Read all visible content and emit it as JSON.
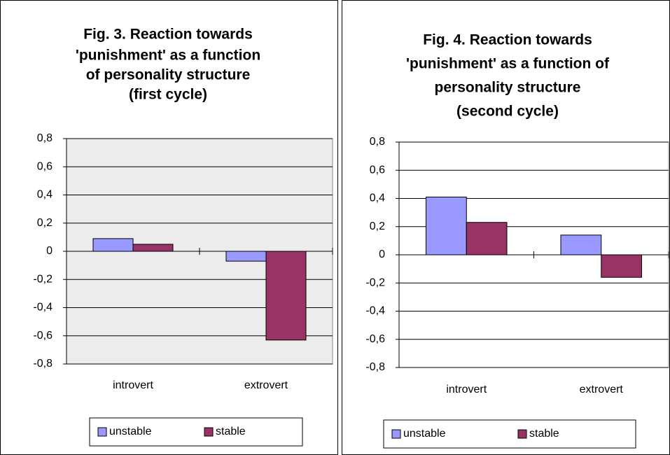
{
  "chart_data": [
    {
      "type": "bar",
      "title": [
        "Fig. 3. Reaction towards",
        "'punishment' as a function",
        "of personality structure",
        "(first cycle)"
      ],
      "categories": [
        "introvert",
        "extrovert"
      ],
      "series": [
        {
          "name": "unstable",
          "color": "#9999ff",
          "values": [
            0.09,
            -0.07
          ]
        },
        {
          "name": "stable",
          "color": "#993366",
          "values": [
            0.05,
            -0.63
          ]
        }
      ],
      "ylim": [
        -0.8,
        0.8
      ],
      "yticks": [
        {
          "value": -0.8,
          "label": "-0,8"
        },
        {
          "value": -0.6,
          "label": "-0,6"
        },
        {
          "value": -0.4,
          "label": "-0,4"
        },
        {
          "value": -0.2,
          "label": "-0,2"
        },
        0,
        {
          "value": 0.2,
          "label": "0,2"
        },
        {
          "value": 0.4,
          "label": "0,4"
        },
        {
          "value": 0.6,
          "label": "0,6"
        },
        {
          "value": 0.8,
          "label": "0,8"
        }
      ],
      "grid": true,
      "legend": "bottom"
    },
    {
      "type": "bar",
      "title": [
        "Fig. 4. Reaction towards",
        "'punishment' as a function of",
        "personality structure",
        "(second cycle)"
      ],
      "categories": [
        "introvert",
        "extrovert"
      ],
      "series": [
        {
          "name": "unstable",
          "color": "#9999ff",
          "values": [
            0.41,
            0.14
          ]
        },
        {
          "name": "stable",
          "color": "#993366",
          "values": [
            0.23,
            -0.16
          ]
        }
      ],
      "ylim": [
        -0.8,
        0.8
      ],
      "yticks": [
        {
          "value": -0.8,
          "label": "-0,8"
        },
        {
          "value": -0.6,
          "label": "-0,6"
        },
        {
          "value": -0.4,
          "label": "-0,4"
        },
        {
          "value": -0.2,
          "label": "-0,2"
        },
        0,
        {
          "value": 0.2,
          "label": "0,2"
        },
        {
          "value": 0.4,
          "label": "0,4"
        },
        {
          "value": 0.6,
          "label": "0,6"
        },
        {
          "value": 0.8,
          "label": "0,8"
        }
      ],
      "grid": true,
      "legend": "bottom"
    }
  ]
}
